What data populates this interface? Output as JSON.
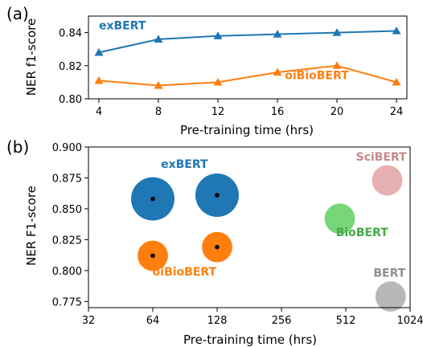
{
  "chart_data": [
    {
      "panel_label": "(a)",
      "type": "line",
      "xlabel": "Pre-training time (hrs)",
      "ylabel": "NER f1-score",
      "xlim": [
        3.3,
        24.7
      ],
      "ylim": [
        0.8,
        0.85
      ],
      "xticks": [
        4,
        8,
        12,
        16,
        20,
        24
      ],
      "yticks": [
        0.8,
        0.82,
        0.84
      ],
      "ytick_labels": [
        "0.80",
        "0.82",
        "0.84"
      ],
      "series": [
        {
          "name": "exBERT",
          "color": "#1f77b4",
          "marker": "triangle",
          "x": [
            4,
            8,
            12,
            16,
            20,
            24
          ],
          "y": [
            0.828,
            0.836,
            0.838,
            0.839,
            0.84,
            0.841
          ]
        },
        {
          "name": "oiBioBERT",
          "color": "#ff7f0e",
          "marker": "triangle",
          "x": [
            4,
            8,
            12,
            16,
            20,
            24
          ],
          "y": [
            0.811,
            0.808,
            0.81,
            0.816,
            0.82,
            0.81
          ]
        }
      ],
      "annotations": [
        {
          "text": "exBERT",
          "color": "#1f77b4",
          "x": 4,
          "y": 0.842
        },
        {
          "text": "oiBioBERT",
          "color": "#ff7f0e",
          "x": 16.5,
          "y": 0.812
        }
      ]
    },
    {
      "panel_label": "(b)",
      "type": "scatter",
      "xscale": "log2",
      "xlabel": "Pre-training time (hrs)",
      "ylabel": "NER F1-score",
      "xlim": [
        32,
        1024
      ],
      "ylim": [
        0.77,
        0.9
      ],
      "xticks": [
        32,
        64,
        128,
        256,
        512,
        1024
      ],
      "yticks": [
        0.775,
        0.8,
        0.825,
        0.85,
        0.875,
        0.9
      ],
      "ytick_labels": [
        "0.775",
        "0.800",
        "0.825",
        "0.850",
        "0.875",
        "0.900"
      ],
      "points": [
        {
          "label": "exBERT",
          "x": 64,
          "y": 0.858,
          "size": 1.0,
          "color": "#1f77b4",
          "dot": true
        },
        {
          "label": "exBERT",
          "x": 128,
          "y": 0.861,
          "size": 1.0,
          "color": "#1f77b4",
          "dot": true
        },
        {
          "label": "oiBioBERT",
          "x": 64,
          "y": 0.812,
          "size": 0.7,
          "color": "#ff7f0e",
          "dot": true
        },
        {
          "label": "oiBioBERT",
          "x": 128,
          "y": 0.819,
          "size": 0.7,
          "color": "#ff7f0e",
          "dot": true
        },
        {
          "label": "SciBERT",
          "x": 800,
          "y": 0.873,
          "size": 0.7,
          "color": "#e6b0b0",
          "dot": false
        },
        {
          "label": "BioBERT",
          "x": 480,
          "y": 0.842,
          "size": 0.7,
          "color": "#77d677",
          "dot": false
        },
        {
          "label": "BERT",
          "x": 830,
          "y": 0.779,
          "size": 0.7,
          "color": "#b8b8b8",
          "dot": false
        }
      ],
      "annotations": [
        {
          "text": "exBERT",
          "color": "#1f77b4",
          "x": 90,
          "y": 0.883
        },
        {
          "text": "oiBioBERT",
          "color": "#ff7f0e",
          "x": 90,
          "y": 0.796
        },
        {
          "text": "SciBERT",
          "color": "#c48a8a",
          "x": 750,
          "y": 0.889
        },
        {
          "text": "BioBERT",
          "color": "#44aa44",
          "x": 610,
          "y": 0.828
        },
        {
          "text": "BERT",
          "color": "#8f8f8f",
          "x": 820,
          "y": 0.795
        }
      ]
    }
  ]
}
